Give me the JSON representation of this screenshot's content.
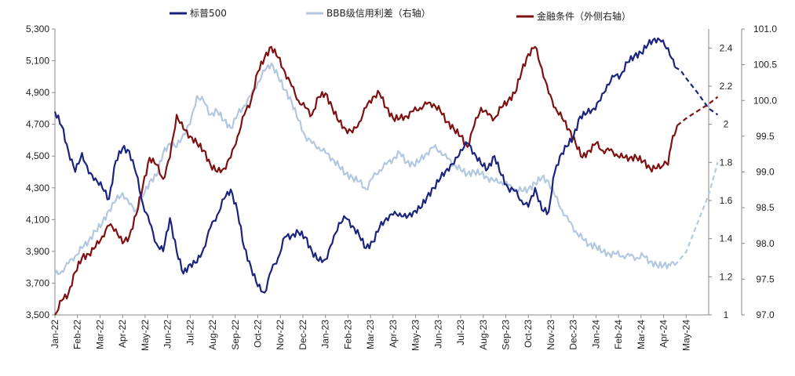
{
  "chart_data": {
    "type": "line",
    "legend_position": "top",
    "grid": false,
    "colors": {
      "sp500": "#1a237e",
      "bbb": "#b3c8e0",
      "fci": "#7f1010"
    },
    "x_labels": [
      "Jan-22",
      "Feb-22",
      "Mar-22",
      "Apr-22",
      "May-22",
      "Jun-22",
      "Jul-22",
      "Aug-22",
      "Sep-22",
      "Oct-22",
      "Nov-22",
      "Dec-22",
      "Jan-23",
      "Feb-23",
      "Mar-23",
      "Apr-23",
      "May-23",
      "Jun-23",
      "Jul-23",
      "Aug-23",
      "Sep-23",
      "Oct-23",
      "Nov-23",
      "Dec-23",
      "Jan-24",
      "Feb-24",
      "Mar-24",
      "Apr-24",
      "May-24"
    ],
    "x_range": [
      0,
      29
    ],
    "y_left": {
      "min": 3500,
      "max": 5300,
      "ticks": [
        "3,500",
        "3,700",
        "3,900",
        "4,100",
        "4,300",
        "4,500",
        "4,700",
        "4,900",
        "5,100",
        "5,300"
      ]
    },
    "y_right1": {
      "min": 1.0,
      "max": 2.5,
      "ticks": [
        "1",
        "1.2",
        "1.4",
        "1.6",
        "1.8",
        "2",
        "2.2",
        "2.4"
      ]
    },
    "y_right2": {
      "min": 97.0,
      "max": 101.0,
      "ticks": [
        "97.0",
        "97.5",
        "98.0",
        "98.5",
        "99.0",
        "99.5",
        "100.0",
        "100.5",
        "101.0"
      ]
    },
    "series": [
      {
        "name": "标普500",
        "axis": "left",
        "dashed_from_x": 27.5,
        "points": [
          [
            0,
            4780
          ],
          [
            0.3,
            4690
          ],
          [
            0.6,
            4530
          ],
          [
            0.9,
            4400
          ],
          [
            1.2,
            4520
          ],
          [
            1.5,
            4390
          ],
          [
            1.8,
            4360
          ],
          [
            2.1,
            4300
          ],
          [
            2.4,
            4230
          ],
          [
            2.7,
            4470
          ],
          [
            3.0,
            4550
          ],
          [
            3.3,
            4530
          ],
          [
            3.6,
            4390
          ],
          [
            3.9,
            4200
          ],
          [
            4.2,
            4080
          ],
          [
            4.5,
            3950
          ],
          [
            4.8,
            3900
          ],
          [
            5.1,
            4110
          ],
          [
            5.4,
            3900
          ],
          [
            5.7,
            3760
          ],
          [
            6.0,
            3820
          ],
          [
            6.3,
            3830
          ],
          [
            6.6,
            3920
          ],
          [
            6.9,
            4050
          ],
          [
            7.2,
            4130
          ],
          [
            7.5,
            4230
          ],
          [
            7.8,
            4290
          ],
          [
            8.1,
            4150
          ],
          [
            8.4,
            3920
          ],
          [
            8.7,
            3800
          ],
          [
            9.0,
            3680
          ],
          [
            9.3,
            3640
          ],
          [
            9.6,
            3780
          ],
          [
            9.9,
            3860
          ],
          [
            10.2,
            3990
          ],
          [
            10.5,
            4000
          ],
          [
            10.8,
            4020
          ],
          [
            11.1,
            3990
          ],
          [
            11.4,
            3900
          ],
          [
            11.7,
            3840
          ],
          [
            12.0,
            3850
          ],
          [
            12.3,
            3950
          ],
          [
            12.6,
            4080
          ],
          [
            12.9,
            4110
          ],
          [
            13.2,
            4060
          ],
          [
            13.5,
            4000
          ],
          [
            13.8,
            3920
          ],
          [
            14.1,
            3960
          ],
          [
            14.4,
            4050
          ],
          [
            14.7,
            4110
          ],
          [
            15.0,
            4130
          ],
          [
            15.3,
            4140
          ],
          [
            15.6,
            4110
          ],
          [
            15.9,
            4150
          ],
          [
            16.2,
            4170
          ],
          [
            16.5,
            4240
          ],
          [
            16.8,
            4300
          ],
          [
            17.1,
            4360
          ],
          [
            17.4,
            4420
          ],
          [
            17.7,
            4450
          ],
          [
            18.0,
            4540
          ],
          [
            18.3,
            4580
          ],
          [
            18.6,
            4520
          ],
          [
            18.9,
            4450
          ],
          [
            19.2,
            4420
          ],
          [
            19.5,
            4500
          ],
          [
            19.8,
            4380
          ],
          [
            20.1,
            4300
          ],
          [
            20.4,
            4280
          ],
          [
            20.7,
            4220
          ],
          [
            21.0,
            4180
          ],
          [
            21.3,
            4300
          ],
          [
            21.6,
            4160
          ],
          [
            21.9,
            4150
          ],
          [
            22.1,
            4360
          ],
          [
            22.4,
            4500
          ],
          [
            22.7,
            4560
          ],
          [
            23.0,
            4620
          ],
          [
            23.3,
            4750
          ],
          [
            23.6,
            4770
          ],
          [
            23.9,
            4800
          ],
          [
            24.2,
            4850
          ],
          [
            24.5,
            4950
          ],
          [
            24.8,
            5000
          ],
          [
            25.1,
            5010
          ],
          [
            25.4,
            5090
          ],
          [
            25.7,
            5130
          ],
          [
            26.0,
            5150
          ],
          [
            26.3,
            5200
          ],
          [
            26.6,
            5240
          ],
          [
            26.9,
            5220
          ],
          [
            27.2,
            5180
          ],
          [
            27.5,
            5060
          ],
          [
            27.75,
            5040
          ],
          [
            28.0,
            4990
          ],
          [
            28.5,
            4900
          ],
          [
            29.0,
            4800
          ],
          [
            29.4,
            4760
          ]
        ]
      },
      {
        "name": "BBB级信用利差（右轴）",
        "axis": "right1",
        "dashed_from_x": 27.5,
        "points": [
          [
            0,
            1.21
          ],
          [
            0.3,
            1.23
          ],
          [
            0.6,
            1.27
          ],
          [
            0.9,
            1.31
          ],
          [
            1.2,
            1.35
          ],
          [
            1.5,
            1.39
          ],
          [
            1.8,
            1.44
          ],
          [
            2.1,
            1.48
          ],
          [
            2.4,
            1.55
          ],
          [
            2.7,
            1.6
          ],
          [
            3.0,
            1.64
          ],
          [
            3.3,
            1.58
          ],
          [
            3.6,
            1.55
          ],
          [
            3.9,
            1.62
          ],
          [
            4.2,
            1.7
          ],
          [
            4.5,
            1.73
          ],
          [
            4.8,
            1.85
          ],
          [
            5.1,
            1.9
          ],
          [
            5.4,
            1.88
          ],
          [
            5.7,
            1.95
          ],
          [
            6.0,
            2.0
          ],
          [
            6.3,
            2.15
          ],
          [
            6.6,
            2.12
          ],
          [
            6.9,
            2.05
          ],
          [
            7.2,
            2.07
          ],
          [
            7.5,
            2.02
          ],
          [
            7.8,
            1.98
          ],
          [
            8.1,
            2.05
          ],
          [
            8.4,
            2.1
          ],
          [
            8.7,
            2.15
          ],
          [
            9.0,
            2.22
          ],
          [
            9.3,
            2.28
          ],
          [
            9.6,
            2.32
          ],
          [
            9.9,
            2.25
          ],
          [
            10.2,
            2.18
          ],
          [
            10.5,
            2.12
          ],
          [
            10.8,
            2.02
          ],
          [
            11.1,
            1.94
          ],
          [
            11.4,
            1.9
          ],
          [
            11.7,
            1.88
          ],
          [
            12.0,
            1.85
          ],
          [
            12.3,
            1.82
          ],
          [
            12.6,
            1.78
          ],
          [
            12.9,
            1.74
          ],
          [
            13.2,
            1.72
          ],
          [
            13.5,
            1.7
          ],
          [
            13.8,
            1.66
          ],
          [
            14.1,
            1.72
          ],
          [
            14.4,
            1.76
          ],
          [
            14.7,
            1.79
          ],
          [
            15.0,
            1.82
          ],
          [
            15.3,
            1.85
          ],
          [
            15.6,
            1.8
          ],
          [
            15.9,
            1.79
          ],
          [
            16.2,
            1.81
          ],
          [
            16.5,
            1.85
          ],
          [
            16.8,
            1.88
          ],
          [
            17.1,
            1.86
          ],
          [
            17.4,
            1.82
          ],
          [
            17.7,
            1.79
          ],
          [
            18.0,
            1.76
          ],
          [
            18.3,
            1.74
          ],
          [
            18.6,
            1.75
          ],
          [
            18.9,
            1.74
          ],
          [
            19.2,
            1.72
          ],
          [
            19.5,
            1.7
          ],
          [
            19.8,
            1.7
          ],
          [
            20.1,
            1.68
          ],
          [
            20.4,
            1.66
          ],
          [
            20.7,
            1.65
          ],
          [
            21.0,
            1.66
          ],
          [
            21.3,
            1.69
          ],
          [
            21.6,
            1.72
          ],
          [
            21.9,
            1.7
          ],
          [
            22.2,
            1.62
          ],
          [
            22.5,
            1.55
          ],
          [
            22.8,
            1.49
          ],
          [
            23.1,
            1.44
          ],
          [
            23.4,
            1.4
          ],
          [
            23.7,
            1.37
          ],
          [
            24.0,
            1.36
          ],
          [
            24.3,
            1.33
          ],
          [
            24.6,
            1.32
          ],
          [
            24.9,
            1.32
          ],
          [
            25.2,
            1.31
          ],
          [
            25.5,
            1.31
          ],
          [
            25.8,
            1.3
          ],
          [
            26.1,
            1.31
          ],
          [
            26.4,
            1.28
          ],
          [
            26.7,
            1.26
          ],
          [
            27.0,
            1.26
          ],
          [
            27.3,
            1.26
          ],
          [
            27.5,
            1.26
          ],
          [
            28.0,
            1.33
          ],
          [
            28.5,
            1.48
          ],
          [
            29.0,
            1.63
          ],
          [
            29.4,
            1.8
          ]
        ]
      },
      {
        "name": "金融条件（外侧右轴）",
        "axis": "right2",
        "dashed_from_x": 27.6,
        "points": [
          [
            0,
            97.0
          ],
          [
            0.3,
            97.2
          ],
          [
            0.6,
            97.3
          ],
          [
            0.9,
            97.6
          ],
          [
            1.2,
            97.8
          ],
          [
            1.5,
            97.85
          ],
          [
            1.8,
            97.95
          ],
          [
            2.1,
            98.1
          ],
          [
            2.4,
            98.25
          ],
          [
            2.7,
            98.2
          ],
          [
            3.0,
            98.0
          ],
          [
            3.3,
            98.1
          ],
          [
            3.6,
            98.4
          ],
          [
            3.9,
            98.8
          ],
          [
            4.2,
            99.2
          ],
          [
            4.5,
            99.1
          ],
          [
            4.8,
            98.9
          ],
          [
            5.1,
            99.2
          ],
          [
            5.4,
            99.8
          ],
          [
            5.7,
            99.6
          ],
          [
            6.0,
            99.5
          ],
          [
            6.3,
            99.4
          ],
          [
            6.6,
            99.3
          ],
          [
            6.9,
            99.1
          ],
          [
            7.2,
            99.0
          ],
          [
            7.5,
            99.05
          ],
          [
            7.8,
            99.2
          ],
          [
            8.1,
            99.5
          ],
          [
            8.4,
            99.8
          ],
          [
            8.7,
            100.0
          ],
          [
            9.0,
            100.4
          ],
          [
            9.3,
            100.6
          ],
          [
            9.6,
            100.75
          ],
          [
            9.9,
            100.6
          ],
          [
            10.2,
            100.4
          ],
          [
            10.5,
            100.2
          ],
          [
            10.8,
            100.0
          ],
          [
            11.1,
            99.9
          ],
          [
            11.4,
            99.8
          ],
          [
            11.7,
            100.05
          ],
          [
            12.0,
            100.1
          ],
          [
            12.3,
            99.9
          ],
          [
            12.6,
            99.7
          ],
          [
            12.9,
            99.6
          ],
          [
            13.2,
            99.55
          ],
          [
            13.5,
            99.7
          ],
          [
            13.8,
            99.9
          ],
          [
            14.1,
            100.05
          ],
          [
            14.4,
            100.1
          ],
          [
            14.7,
            99.9
          ],
          [
            15.0,
            99.75
          ],
          [
            15.3,
            99.75
          ],
          [
            15.6,
            99.78
          ],
          [
            15.9,
            99.85
          ],
          [
            16.2,
            99.9
          ],
          [
            16.5,
            99.95
          ],
          [
            16.8,
            99.95
          ],
          [
            17.1,
            99.85
          ],
          [
            17.4,
            99.7
          ],
          [
            17.7,
            99.6
          ],
          [
            18.0,
            99.5
          ],
          [
            18.3,
            99.35
          ],
          [
            18.6,
            99.65
          ],
          [
            18.9,
            99.9
          ],
          [
            19.2,
            99.8
          ],
          [
            19.5,
            99.75
          ],
          [
            19.8,
            99.9
          ],
          [
            20.1,
            100.0
          ],
          [
            20.4,
            100.1
          ],
          [
            20.7,
            100.4
          ],
          [
            21.0,
            100.65
          ],
          [
            21.3,
            100.75
          ],
          [
            21.6,
            100.45
          ],
          [
            21.9,
            100.1
          ],
          [
            22.2,
            99.9
          ],
          [
            22.5,
            99.75
          ],
          [
            22.8,
            99.6
          ],
          [
            23.1,
            99.4
          ],
          [
            23.4,
            99.2
          ],
          [
            23.7,
            99.3
          ],
          [
            24.0,
            99.4
          ],
          [
            24.3,
            99.3
          ],
          [
            24.6,
            99.3
          ],
          [
            24.9,
            99.25
          ],
          [
            25.2,
            99.2
          ],
          [
            25.5,
            99.2
          ],
          [
            25.8,
            99.2
          ],
          [
            26.1,
            99.15
          ],
          [
            26.4,
            99.05
          ],
          [
            26.7,
            99.05
          ],
          [
            27.0,
            99.1
          ],
          [
            27.2,
            99.1
          ],
          [
            27.35,
            99.4
          ],
          [
            27.6,
            99.65
          ],
          [
            28.0,
            99.75
          ],
          [
            28.5,
            99.85
          ],
          [
            29.0,
            99.95
          ],
          [
            29.4,
            100.05
          ]
        ]
      }
    ]
  }
}
